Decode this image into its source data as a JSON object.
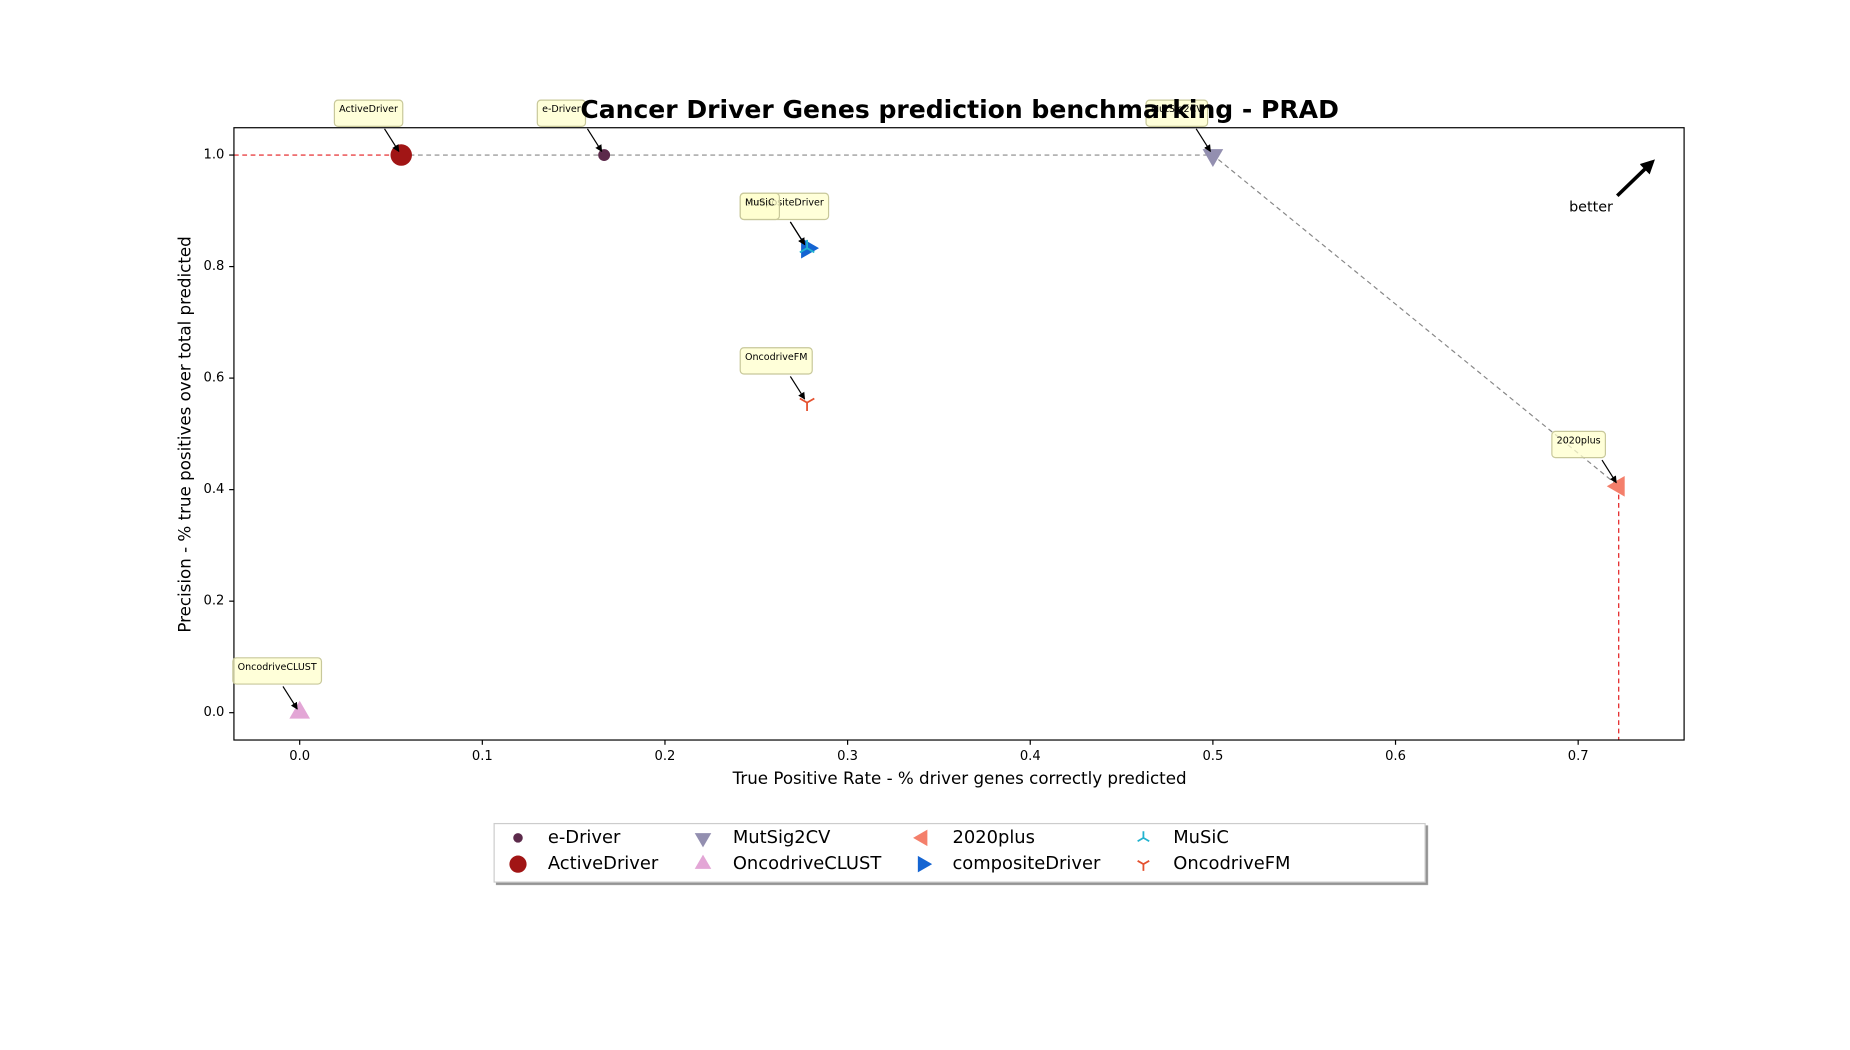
{
  "chart_data": {
    "type": "scatter",
    "title": "Cancer Driver Genes prediction benchmarking - PRAD",
    "x_label": "True Positive Rate - % driver genes correctly predicted",
    "y_label": "Precision - % true positives over total predicted",
    "annotation": "better",
    "xlim": [
      -0.036,
      0.758
    ],
    "ylim": [
      -0.049,
      1.049
    ],
    "xticks": [
      {
        "value": 0,
        "label": "0.0"
      },
      0.1,
      0.2,
      0.3,
      0.4,
      0.5,
      0.6,
      0.7
    ],
    "yticks": [
      {
        "value": 0,
        "label": "0.0"
      },
      0.2,
      0.4,
      0.6,
      0.8,
      {
        "value": 1,
        "label": "1.0"
      }
    ],
    "grid": false,
    "legend": "lower center",
    "series": [
      {
        "name": "e-Driver",
        "color": "#5c2a4b",
        "marker": "point",
        "x": [
          0.1667
        ],
        "values": [
          1.0
        ]
      },
      {
        "name": "ActiveDriver",
        "color": "#a11515",
        "marker": "circle",
        "x": [
          0.0556
        ],
        "values": [
          1.0
        ]
      },
      {
        "name": "MutSig2CV",
        "color": "#938fb0",
        "marker": "triangle-down",
        "x": [
          0.5
        ],
        "values": [
          1.0
        ]
      },
      {
        "name": "OncodriveCLUST",
        "color": "#e3a6d6",
        "marker": "triangle-up",
        "x": [
          0.0
        ],
        "values": [
          0.0
        ]
      },
      {
        "name": "2020plus",
        "color": "#f47f6b",
        "marker": "triangle-left",
        "x": [
          0.7222
        ],
        "values": [
          0.406
        ]
      },
      {
        "name": "compositeDriver",
        "color": "#1464d2",
        "marker": "triangle-right",
        "x": [
          0.2778
        ],
        "values": [
          0.833
        ]
      },
      {
        "name": "MuSiC",
        "color": "#22b3cf",
        "marker": "tri-down",
        "x": [
          0.2778
        ],
        "values": [
          0.833
        ]
      },
      {
        "name": "OncodriveFM",
        "color": "#e4512f",
        "marker": "tri-up",
        "x": [
          0.2778
        ],
        "values": [
          0.556
        ]
      }
    ]
  }
}
